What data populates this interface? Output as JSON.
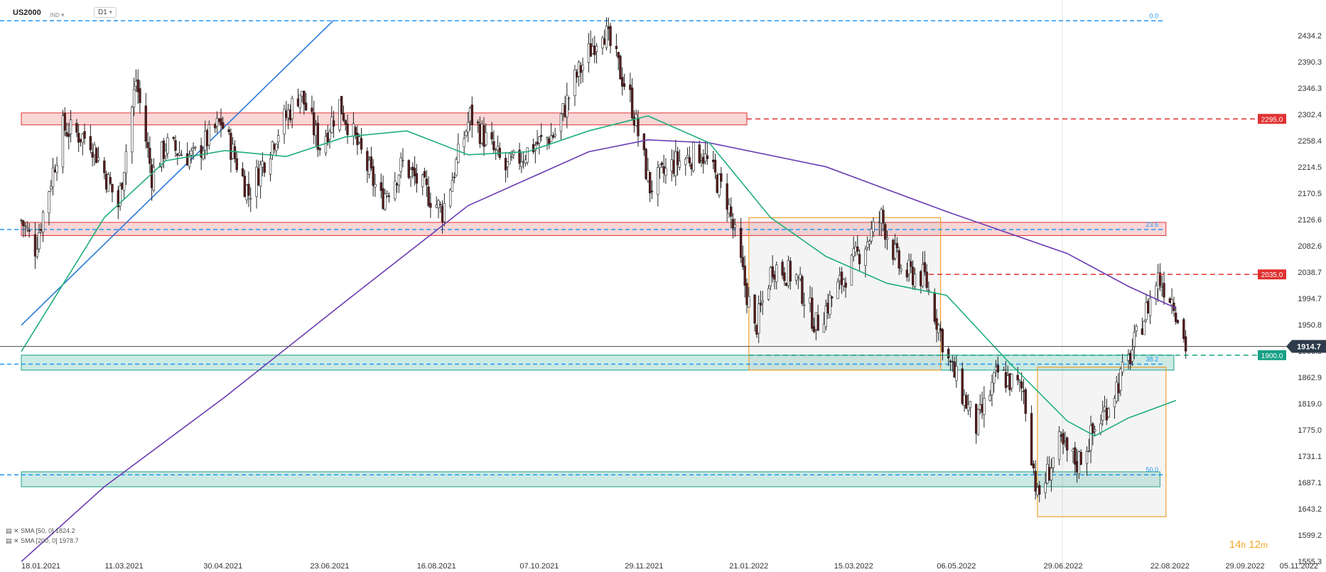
{
  "header": {
    "symbol": "US2000",
    "instrument": "IND",
    "timeframe": "D1"
  },
  "legend": [
    {
      "label": "SMA [50, 0]",
      "value": "1824.2"
    },
    {
      "label": "SMA [200, 0]",
      "value": "1978.7"
    }
  ],
  "timer": {
    "h": "14",
    "h_unit": "h",
    "m": "12",
    "m_unit": "m"
  },
  "colors": {
    "up": "#ffffff",
    "down": "#5a1a1a",
    "wick": "#222222",
    "sma50": "#1fae7a",
    "sma200": "#6a3ab2",
    "trend": "#2979d9",
    "resistance": "#e03030",
    "support": "#16a085",
    "fib": "#2196f3",
    "range_box": "#f0a030"
  },
  "chart_data": {
    "type": "candlestick",
    "ylim": [
      1555.3,
      2470
    ],
    "x_range": [
      "18.01.2021",
      "05.11.2022"
    ],
    "x_tick_labels": [
      "18.01.2021",
      "11.03.2021",
      "30.04.2021",
      "23.06.2021",
      "16.08.2021",
      "07.10.2021",
      "29.11.2021",
      "21.01.2022",
      "15.03.2022",
      "06.05.2022",
      "29.06.2022",
      "22.08.2022",
      "29.09.2022",
      "05.11.2022"
    ],
    "y_tick_labels": [
      "2434.2",
      "2390.3",
      "2346.3",
      "2302.4",
      "2258.4",
      "2214.5",
      "2170.5",
      "2126.6",
      "2082.6",
      "2038.7",
      "1994.7",
      "1950.8",
      "1906.8",
      "1862.9",
      "1819.0",
      "1775.0",
      "1731.1",
      "1687.1",
      "1643.2",
      "1599.2",
      "1555.3"
    ],
    "last_price": 1914.7,
    "price_lines": [
      {
        "label": "2295.0",
        "value": 2295.0,
        "color": "#e03030"
      },
      {
        "label": "2035.0",
        "value": 2035.0,
        "color": "#e03030"
      },
      {
        "label": "1900.0",
        "value": 1900.0,
        "color": "#16a085"
      }
    ],
    "fib_levels": [
      {
        "label": "0.0",
        "value": 2459
      },
      {
        "label": "23.6",
        "value": 2110
      },
      {
        "label": "38.2",
        "value": 1885
      },
      {
        "label": "50.0",
        "value": 1700
      }
    ],
    "series_path": [
      [
        "18.01.2021",
        2125
      ],
      [
        "25.01.2021",
        2080
      ],
      [
        "08.02.2021",
        2280
      ],
      [
        "22.02.2021",
        2260
      ],
      [
        "08.03.2021",
        2150
      ],
      [
        "17.03.2021",
        2360
      ],
      [
        "25.03.2021",
        2200
      ],
      [
        "01.04.2021",
        2250
      ],
      [
        "15.04.2021",
        2230
      ],
      [
        "29.04.2021",
        2290
      ],
      [
        "13.05.2021",
        2170
      ],
      [
        "27.05.2021",
        2270
      ],
      [
        "08.06.2021",
        2340
      ],
      [
        "18.06.2021",
        2250
      ],
      [
        "28.06.2021",
        2320
      ],
      [
        "19.07.2021",
        2160
      ],
      [
        "30.07.2021",
        2220
      ],
      [
        "19.08.2021",
        2140
      ],
      [
        "02.09.2021",
        2300
      ],
      [
        "20.09.2021",
        2210
      ],
      [
        "04.10.2021",
        2250
      ],
      [
        "15.10.2021",
        2270
      ],
      [
        "25.10.2021",
        2360
      ],
      [
        "08.11.2021",
        2450
      ],
      [
        "22.11.2021",
        2330
      ],
      [
        "02.12.2021",
        2180
      ],
      [
        "14.12.2021",
        2220
      ],
      [
        "28.12.2021",
        2240
      ],
      [
        "10.01.2022",
        2160
      ],
      [
        "24.01.2022",
        1940
      ],
      [
        "02.02.2022",
        2050
      ],
      [
        "14.02.2022",
        2030
      ],
      [
        "24.02.2022",
        1950
      ],
      [
        "10.03.2022",
        2030
      ],
      [
        "29.03.2022",
        2130
      ],
      [
        "08.04.2022",
        2040
      ],
      [
        "20.04.2022",
        2030
      ],
      [
        "02.05.2022",
        1890
      ],
      [
        "16.05.2022",
        1780
      ],
      [
        "27.05.2022",
        1870
      ],
      [
        "09.06.2022",
        1840
      ],
      [
        "16.06.2022",
        1660
      ],
      [
        "27.06.2022",
        1750
      ],
      [
        "06.07.2022",
        1720
      ],
      [
        "19.07.2022",
        1800
      ],
      [
        "01.08.2022",
        1890
      ],
      [
        "16.08.2022",
        2030
      ],
      [
        "24.08.2022",
        1990
      ],
      [
        "30.08.2022",
        1914.7
      ]
    ],
    "sma50": [
      [
        "18.01.2021",
        1906
      ],
      [
        "01.03.2021",
        2130
      ],
      [
        "01.04.2021",
        2225
      ],
      [
        "01.05.2021",
        2242
      ],
      [
        "01.06.2021",
        2232
      ],
      [
        "01.07.2021",
        2265
      ],
      [
        "01.08.2021",
        2275
      ],
      [
        "01.09.2021",
        2235
      ],
      [
        "01.10.2021",
        2240
      ],
      [
        "01.11.2021",
        2275
      ],
      [
        "01.12.2021",
        2300
      ],
      [
        "01.01.2022",
        2255
      ],
      [
        "01.02.2022",
        2130
      ],
      [
        "01.03.2022",
        2065
      ],
      [
        "01.04.2022",
        2020
      ],
      [
        "01.05.2022",
        2000
      ],
      [
        "01.06.2022",
        1890
      ],
      [
        "01.07.2022",
        1790
      ],
      [
        "15.07.2022",
        1765
      ],
      [
        "01.08.2022",
        1795
      ],
      [
        "25.08.2022",
        1824.2
      ]
    ],
    "sma200": [
      [
        "18.01.2021",
        1555
      ],
      [
        "01.03.2021",
        1680
      ],
      [
        "01.05.2021",
        1830
      ],
      [
        "01.07.2021",
        1990
      ],
      [
        "01.09.2021",
        2150
      ],
      [
        "01.11.2021",
        2240
      ],
      [
        "01.12.2021",
        2260
      ],
      [
        "01.01.2022",
        2255
      ],
      [
        "01.03.2022",
        2215
      ],
      [
        "01.05.2022",
        2140
      ],
      [
        "01.07.2022",
        2070
      ],
      [
        "01.08.2022",
        2015
      ],
      [
        "25.08.2022",
        1978.7
      ]
    ],
    "trendline": {
      "start": [
        "18.01.2021",
        1950
      ],
      "end": [
        "25.06.2021",
        2460
      ]
    },
    "zones": [
      {
        "type": "resistance",
        "from": "18.01.2021",
        "to": "20.01.2022",
        "low": 2285,
        "high": 2305
      },
      {
        "type": "resistance",
        "from": "18.01.2021",
        "to": "20.08.2022",
        "low": 2100,
        "high": 2122
      },
      {
        "type": "support",
        "from": "18.01.2021",
        "to": "24.08.2022",
        "low": 1875,
        "high": 1900
      },
      {
        "type": "support",
        "from": "18.01.2021",
        "to": "17.08.2022",
        "low": 1680,
        "high": 1705
      }
    ],
    "range_boxes": [
      {
        "from": "21.01.2022",
        "to": "28.04.2022",
        "low": 1875,
        "high": 2130
      },
      {
        "from": "16.06.2022",
        "to": "20.08.2022",
        "low": 1630,
        "high": 1880
      }
    ]
  }
}
